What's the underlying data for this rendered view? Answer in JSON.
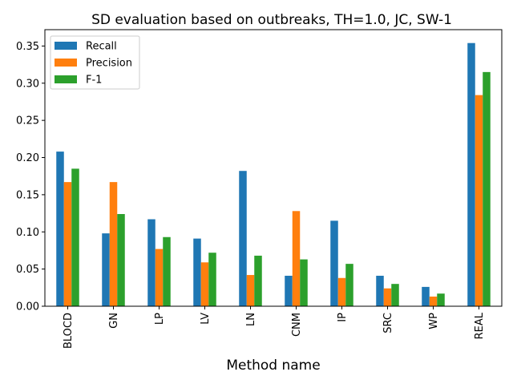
{
  "chart_data": {
    "type": "bar",
    "title": "SD evaluation based on outbreaks, TH=1.0, JC, SW-1",
    "xlabel": "Method name",
    "ylabel": "",
    "ylim": [
      0,
      0.372
    ],
    "yticks": [
      0.0,
      0.05,
      0.1,
      0.15,
      0.2,
      0.25,
      0.3,
      0.35
    ],
    "ytick_labels": [
      "0.00",
      "0.05",
      "0.10",
      "0.15",
      "0.20",
      "0.25",
      "0.30",
      "0.35"
    ],
    "categories": [
      "BLOCD",
      "GN",
      "LP",
      "LV",
      "LN",
      "CNM",
      "IP",
      "SRC",
      "WP",
      "REAL"
    ],
    "series": [
      {
        "name": "Recall",
        "color": "#1f77b4",
        "values": [
          0.208,
          0.098,
          0.117,
          0.091,
          0.182,
          0.041,
          0.115,
          0.041,
          0.026,
          0.354
        ]
      },
      {
        "name": "Precision",
        "color": "#ff7f0e",
        "values": [
          0.167,
          0.167,
          0.077,
          0.059,
          0.042,
          0.128,
          0.038,
          0.024,
          0.013,
          0.284
        ]
      },
      {
        "name": "F-1",
        "color": "#2ca02c",
        "values": [
          0.185,
          0.124,
          0.093,
          0.072,
          0.068,
          0.063,
          0.057,
          0.03,
          0.017,
          0.315
        ]
      }
    ],
    "legend_position": "top-left",
    "grid": false
  }
}
